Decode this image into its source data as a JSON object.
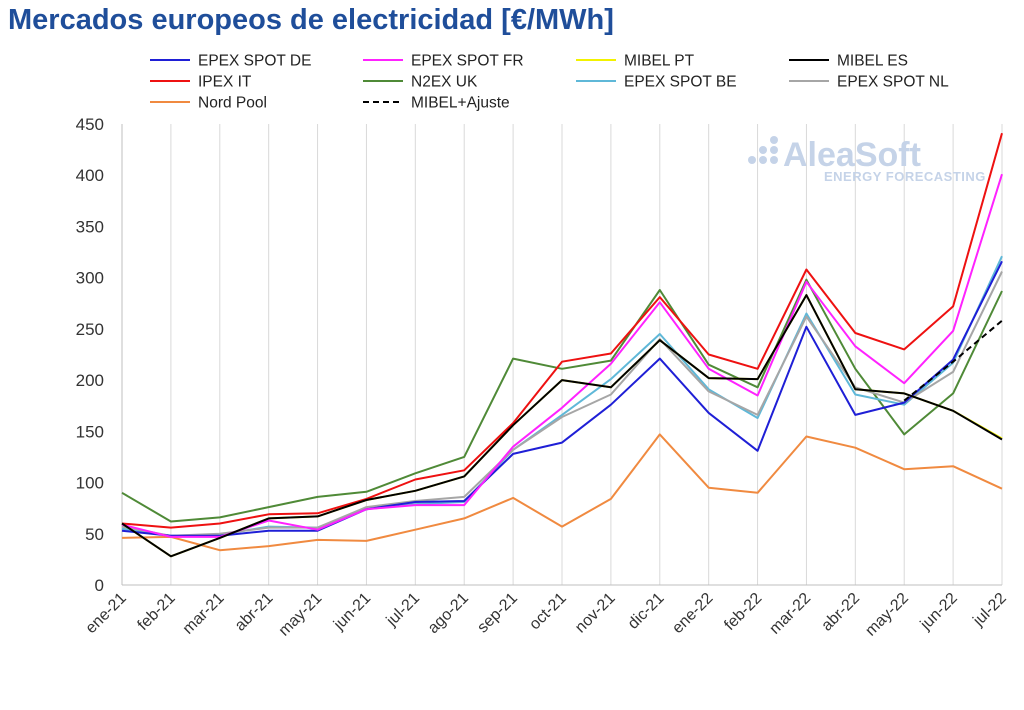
{
  "title": "Mercados europeos de electricidad [€/MWh]",
  "logo": {
    "name": "AleaSoft",
    "tagline": "ENERGY FORECASTING"
  },
  "chart_data": {
    "type": "line",
    "title": "Mercados europeos de electricidad [€/MWh]",
    "xlabel": "",
    "ylabel": "",
    "ylim": [
      0,
      450
    ],
    "yticks": [
      0,
      50,
      100,
      150,
      200,
      250,
      300,
      350,
      400,
      450
    ],
    "grid": "vertical",
    "legend_position": "top",
    "categories": [
      "ene-21",
      "feb-21",
      "mar-21",
      "abr-21",
      "may-21",
      "jun-21",
      "jul-21",
      "ago-21",
      "sep-21",
      "oct-21",
      "nov-21",
      "dic-21",
      "ene-22",
      "feb-22",
      "mar-22",
      "abr-22",
      "may-22",
      "jun-22",
      "jul-22"
    ],
    "series": [
      {
        "name": "EPEX SPOT DE",
        "color": "#1f1fd6",
        "dash": false,
        "values": [
          53,
          48,
          48,
          53,
          53,
          74,
          81,
          82,
          128,
          139,
          176,
          221,
          168,
          131,
          252,
          166,
          178,
          220,
          316
        ]
      },
      {
        "name": "EPEX SPOT FR",
        "color": "#ff22ff",
        "dash": false,
        "values": [
          59,
          47,
          47,
          63,
          54,
          74,
          78,
          78,
          135,
          173,
          216,
          276,
          211,
          185,
          296,
          233,
          197,
          248,
          401
        ]
      },
      {
        "name": "MIBEL PT",
        "color": "#f2f200",
        "dash": false,
        "values": [
          60,
          28,
          46,
          65,
          67,
          83,
          92,
          106,
          156,
          200,
          193,
          239,
          202,
          201,
          283,
          191,
          187,
          170,
          143
        ]
      },
      {
        "name": "MIBEL ES",
        "color": "#000000",
        "dash": false,
        "values": [
          60,
          28,
          46,
          65,
          67,
          83,
          92,
          106,
          156,
          200,
          193,
          239,
          202,
          201,
          283,
          191,
          187,
          170,
          142
        ]
      },
      {
        "name": "IPEX IT",
        "color": "#ee1111",
        "dash": false,
        "values": [
          60,
          56,
          60,
          69,
          70,
          84,
          103,
          112,
          158,
          218,
          226,
          281,
          225,
          211,
          308,
          246,
          230,
          272,
          441
        ]
      },
      {
        "name": "N2EX UK",
        "color": "#4f8a37",
        "dash": false,
        "values": [
          90,
          62,
          66,
          76,
          86,
          91,
          109,
          125,
          221,
          211,
          219,
          288,
          215,
          193,
          298,
          211,
          147,
          187,
          287
        ]
      },
      {
        "name": "EPEX SPOT BE",
        "color": "#5fb8d8",
        "dash": false,
        "values": [
          55,
          48,
          49,
          57,
          56,
          74,
          79,
          81,
          132,
          166,
          201,
          245,
          191,
          163,
          265,
          186,
          176,
          217,
          321
        ]
      },
      {
        "name": "EPEX SPOT NL",
        "color": "#a6a6a6",
        "dash": false,
        "values": [
          57,
          48,
          50,
          56,
          56,
          76,
          82,
          86,
          132,
          164,
          186,
          240,
          189,
          166,
          262,
          193,
          178,
          208,
          306
        ]
      },
      {
        "name": "Nord Pool",
        "color": "#f08a40",
        "dash": false,
        "values": [
          46,
          47,
          34,
          38,
          44,
          43,
          54,
          65,
          85,
          57,
          84,
          147,
          95,
          90,
          145,
          134,
          113,
          116,
          94
        ]
      },
      {
        "name": "MIBEL+Ajuste",
        "color": "#000000",
        "dash": true,
        "values": [
          null,
          null,
          null,
          null,
          null,
          null,
          null,
          null,
          null,
          null,
          null,
          null,
          null,
          null,
          null,
          null,
          180,
          218,
          258
        ]
      }
    ]
  }
}
